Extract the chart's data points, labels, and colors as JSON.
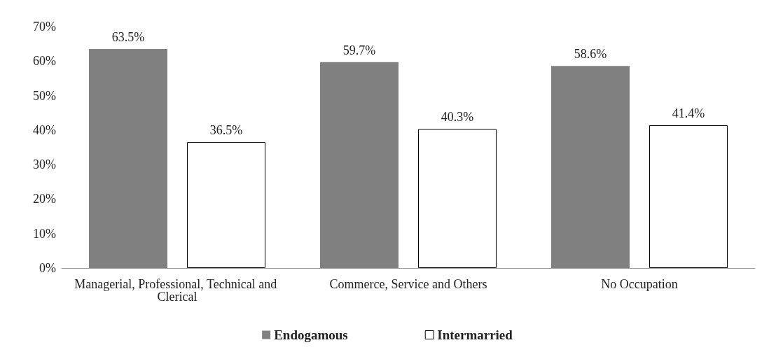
{
  "chart_data": {
    "type": "bar",
    "categories": [
      "Managerial, Professional, Technical and Clerical",
      "Commerce, Service and Others",
      "No Occupation"
    ],
    "series": [
      {
        "name": "Endogamous",
        "color": "#808080",
        "values": [
          63.5,
          59.7,
          58.6
        ],
        "value_labels": [
          "63.5%",
          "59.7%",
          "58.6%"
        ]
      },
      {
        "name": "Intermarried",
        "color": "#ffffff",
        "values": [
          36.5,
          40.3,
          41.4
        ],
        "value_labels": [
          "36.5%",
          "40.3%",
          "41.4%"
        ]
      }
    ],
    "ylim": [
      0,
      70
    ],
    "yticks": [
      {
        "value": 0,
        "label": "0%"
      },
      {
        "value": 10,
        "label": "10%"
      },
      {
        "value": 20,
        "label": "20%"
      },
      {
        "value": 30,
        "label": "30%"
      },
      {
        "value": 40,
        "label": "40%"
      },
      {
        "value": 50,
        "label": "50%"
      },
      {
        "value": 60,
        "label": "60%"
      },
      {
        "value": 70,
        "label": "70%"
      }
    ],
    "grid": false,
    "legend": "bottom"
  }
}
